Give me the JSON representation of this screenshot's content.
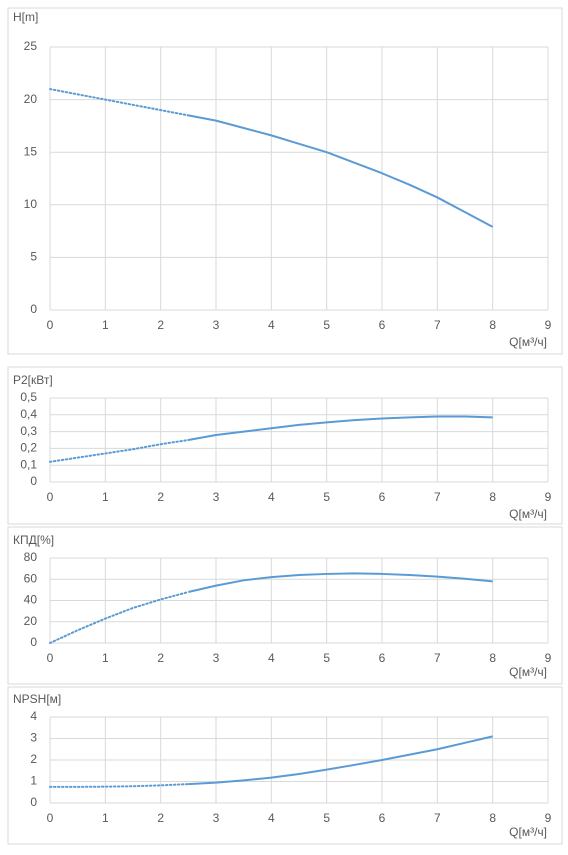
{
  "chart_data": [
    {
      "type": "line",
      "title": "H[m]",
      "x_label": "Q[м³/ч]",
      "grid": true,
      "x": [
        0,
        0.5,
        1,
        1.5,
        2,
        2.5,
        3,
        3.5,
        4,
        4.5,
        5,
        5.5,
        6,
        6.5,
        7,
        7.5,
        8
      ],
      "xlim": [
        0,
        9
      ],
      "xticks": [
        0,
        1,
        2,
        3,
        4,
        5,
        6,
        7,
        8,
        9
      ],
      "ylim": [
        0,
        25
      ],
      "yticks": [
        0,
        5,
        10,
        15,
        20,
        25
      ],
      "series": [
        {
          "color": "#5b9bd5",
          "dashed": true,
          "values": [
            21,
            20.5,
            20,
            19.5,
            19,
            18.5,
            null,
            null,
            null,
            null,
            null,
            null,
            null,
            null,
            null,
            null,
            null
          ]
        },
        {
          "color": "#5b9bd5",
          "dashed": false,
          "values": [
            null,
            null,
            null,
            null,
            null,
            18.5,
            18,
            17.3,
            16.6,
            15.8,
            15,
            14,
            13,
            11.9,
            10.7,
            9.3,
            7.9
          ]
        }
      ]
    },
    {
      "type": "line",
      "title": "P2[кВт]",
      "x_label": "Q[м³/ч]",
      "grid": true,
      "x": [
        0,
        0.5,
        1,
        1.5,
        2,
        2.5,
        3,
        3.5,
        4,
        4.5,
        5,
        5.5,
        6,
        6.5,
        7,
        7.5,
        8
      ],
      "xlim": [
        0,
        9
      ],
      "xticks": [
        0,
        1,
        2,
        3,
        4,
        5,
        6,
        7,
        8,
        9
      ],
      "ylim": [
        0,
        0.5
      ],
      "yticks": [
        0,
        {
          "value": 0.1,
          "label": "0,1"
        },
        {
          "value": 0.2,
          "label": "0,2"
        },
        {
          "value": 0.3,
          "label": "0,3"
        },
        {
          "value": 0.4,
          "label": "0,4"
        },
        {
          "value": 0.5,
          "label": "0,5"
        }
      ],
      "series": [
        {
          "color": "#5b9bd5",
          "dashed": true,
          "values": [
            0.12,
            0.145,
            0.17,
            0.195,
            0.225,
            0.25,
            null,
            null,
            null,
            null,
            null,
            null,
            null,
            null,
            null,
            null,
            null
          ]
        },
        {
          "color": "#5b9bd5",
          "dashed": false,
          "values": [
            null,
            null,
            null,
            null,
            null,
            0.25,
            0.28,
            0.3,
            0.32,
            0.34,
            0.355,
            0.368,
            0.378,
            0.385,
            0.39,
            0.39,
            0.385
          ]
        }
      ]
    },
    {
      "type": "line",
      "title": "КПД[%]",
      "x_label": "Q[м³/ч]",
      "grid": true,
      "x": [
        0,
        0.5,
        1,
        1.5,
        2,
        2.5,
        3,
        3.5,
        4,
        4.5,
        5,
        5.5,
        6,
        6.5,
        7,
        7.5,
        8
      ],
      "xlim": [
        0,
        9
      ],
      "xticks": [
        0,
        1,
        2,
        3,
        4,
        5,
        6,
        7,
        8,
        9
      ],
      "ylim": [
        0,
        80
      ],
      "yticks": [
        0,
        20,
        40,
        60,
        80
      ],
      "series": [
        {
          "color": "#5b9bd5",
          "dashed": true,
          "values": [
            0,
            12,
            23,
            33,
            41,
            48,
            null,
            null,
            null,
            null,
            null,
            null,
            null,
            null,
            null,
            null,
            null
          ]
        },
        {
          "color": "#5b9bd5",
          "dashed": false,
          "values": [
            null,
            null,
            null,
            null,
            null,
            48,
            54,
            59,
            62,
            64,
            65,
            65.5,
            65,
            64,
            62.5,
            60.5,
            58
          ]
        }
      ]
    },
    {
      "type": "line",
      "title": "NPSH[м]",
      "x_label": "Q[м³/ч]",
      "grid": true,
      "x": [
        0,
        0.5,
        1,
        1.5,
        2,
        2.5,
        3,
        3.5,
        4,
        4.5,
        5,
        5.5,
        6,
        6.5,
        7,
        7.5,
        8
      ],
      "xlim": [
        0,
        9
      ],
      "xticks": [
        0,
        1,
        2,
        3,
        4,
        5,
        6,
        7,
        8,
        9
      ],
      "ylim": [
        0,
        4
      ],
      "yticks": [
        0,
        1,
        2,
        3,
        4
      ],
      "series": [
        {
          "color": "#5b9bd5",
          "dashed": true,
          "values": [
            0.75,
            0.75,
            0.76,
            0.78,
            0.82,
            0.88,
            null,
            null,
            null,
            null,
            null,
            null,
            null,
            null,
            null,
            null,
            null
          ]
        },
        {
          "color": "#5b9bd5",
          "dashed": false,
          "values": [
            null,
            null,
            null,
            null,
            null,
            0.88,
            0.95,
            1.05,
            1.18,
            1.35,
            1.55,
            1.77,
            2.0,
            2.25,
            2.5,
            2.8,
            3.1
          ]
        }
      ]
    }
  ]
}
